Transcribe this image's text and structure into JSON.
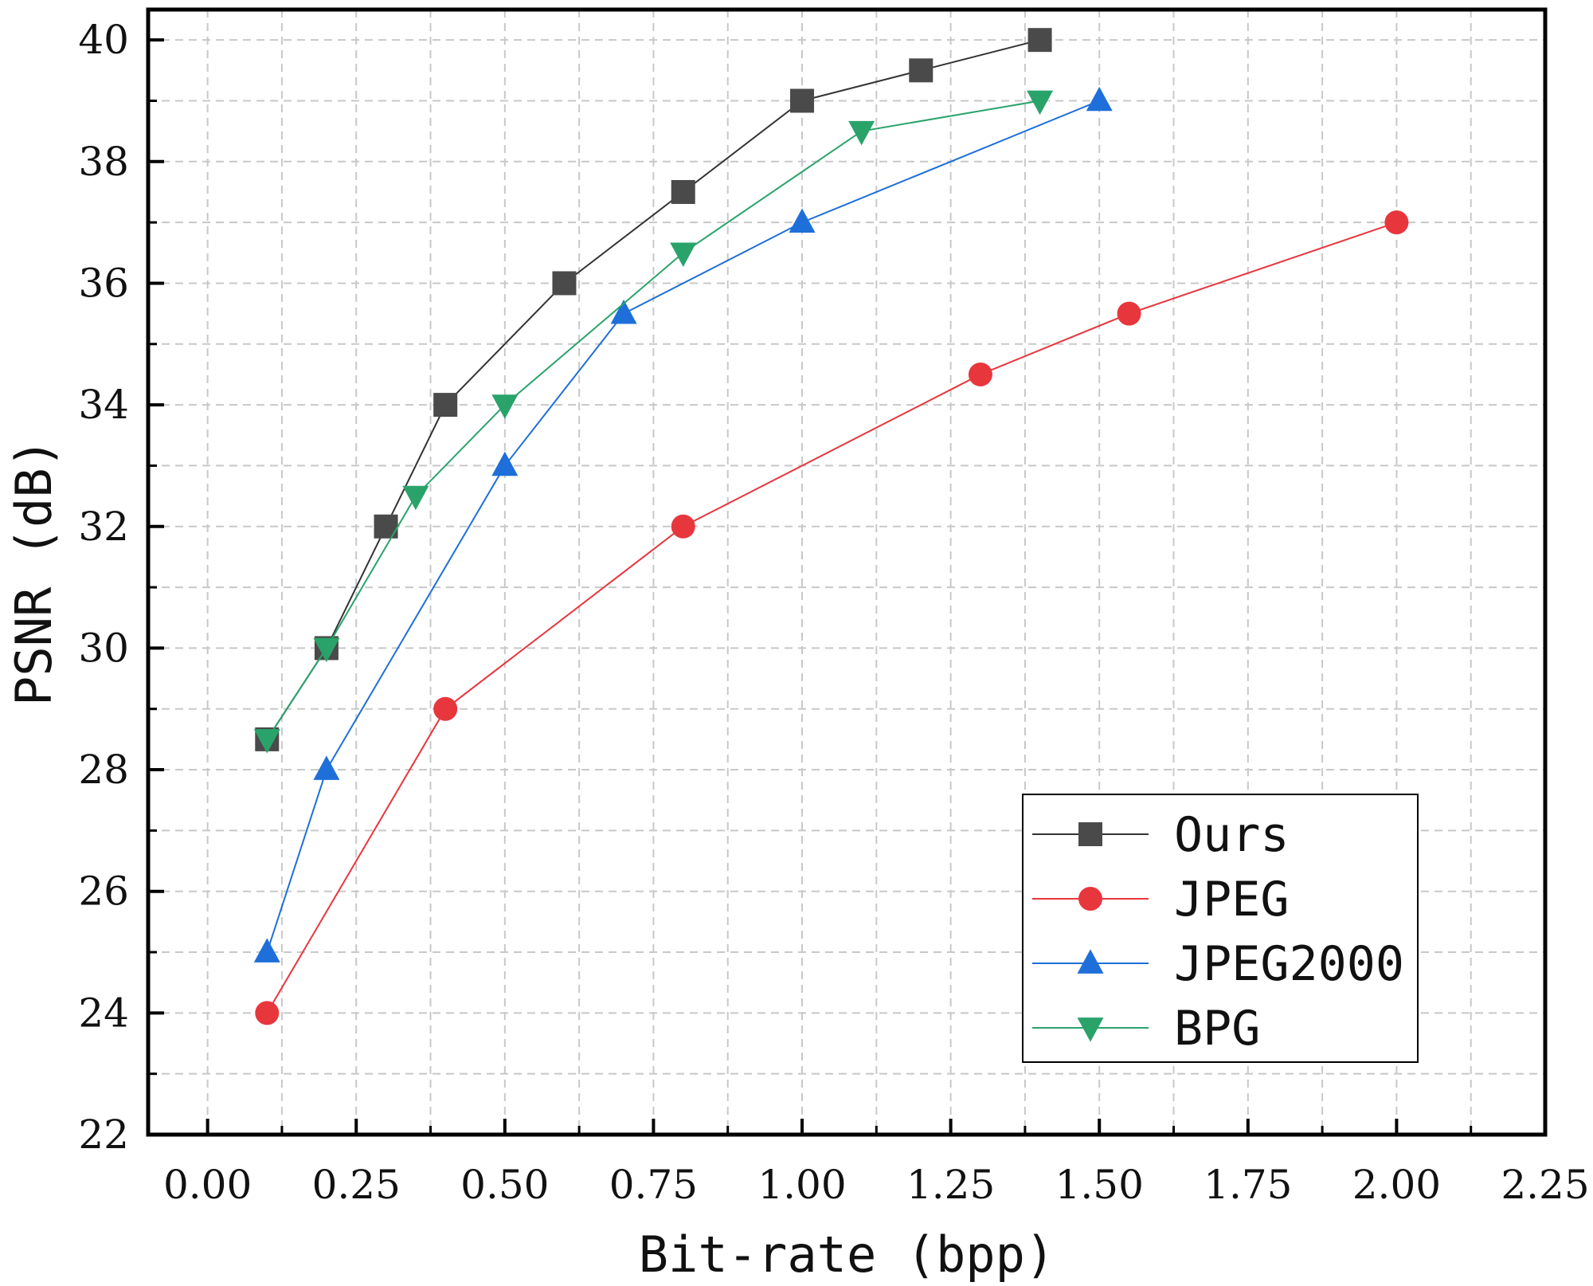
{
  "chart_data": {
    "type": "line",
    "title": "",
    "xlabel": "Bit-rate (bpp)",
    "ylabel": "PSNR (dB)",
    "xlim": [
      -0.1,
      2.25
    ],
    "ylim": [
      22,
      40.5
    ],
    "x_ticks": [
      "0.00",
      "0.25",
      "0.50",
      "0.75",
      "1.00",
      "1.25",
      "1.50",
      "1.75",
      "2.00",
      "2.25"
    ],
    "x_tick_values": [
      0,
      0.25,
      0.5,
      0.75,
      1.0,
      1.25,
      1.5,
      1.75,
      2.0,
      2.25
    ],
    "y_ticks": [
      "22",
      "24",
      "26",
      "28",
      "30",
      "32",
      "34",
      "36",
      "38",
      "40"
    ],
    "y_tick_values": [
      22,
      24,
      26,
      28,
      30,
      32,
      34,
      36,
      38,
      40
    ],
    "grid": true,
    "legend_position": "bottom-right",
    "series": [
      {
        "name": "Ours",
        "marker": "square",
        "color": "#4a4a4a",
        "line_color": "#333333",
        "x": [
          0.1,
          0.2,
          0.3,
          0.4,
          0.6,
          0.8,
          1.0,
          1.2,
          1.4
        ],
        "y": [
          28.5,
          30.0,
          32.0,
          34.0,
          36.0,
          37.5,
          39.0,
          39.5,
          40.0
        ]
      },
      {
        "name": "JPEG",
        "marker": "circle",
        "color": "#e8363d",
        "line_color": "#e8363d",
        "x": [
          0.1,
          0.4,
          0.8,
          1.3,
          1.55,
          2.0
        ],
        "y": [
          24.0,
          29.0,
          32.0,
          34.5,
          35.5,
          37.0
        ]
      },
      {
        "name": "JPEG2000",
        "marker": "triangle-up",
        "color": "#1e6fd9",
        "line_color": "#1e6fd9",
        "x": [
          0.1,
          0.2,
          0.5,
          0.7,
          1.0,
          1.5
        ],
        "y": [
          25.0,
          28.0,
          33.0,
          35.5,
          37.0,
          39.0
        ]
      },
      {
        "name": "BPG",
        "marker": "triangle-down",
        "color": "#2aa36b",
        "line_color": "#2aa36b",
        "x": [
          0.1,
          0.2,
          0.35,
          0.5,
          0.8,
          1.1,
          1.4
        ],
        "y": [
          28.5,
          30.0,
          32.5,
          34.0,
          36.5,
          38.5,
          39.0
        ]
      }
    ]
  }
}
